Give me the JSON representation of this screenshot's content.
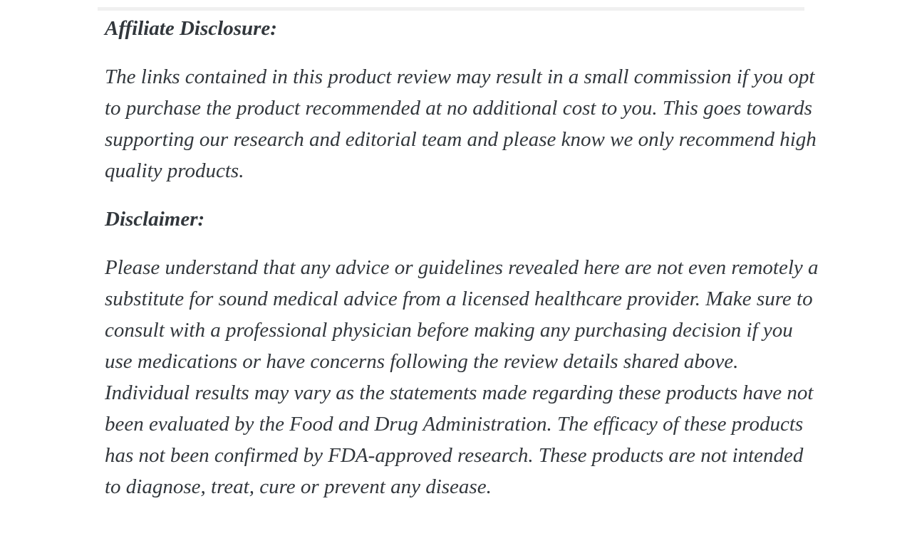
{
  "theme": {
    "background": "#ffffff",
    "text-color": "#32373c",
    "band-color": "#f0f0f0"
  },
  "article": {
    "sections": [
      {
        "heading": "Affiliate Disclosure:",
        "body": "The links contained in this product review may result in a small commission if you opt to purchase the product recommended at no additional cost to you. This goes towards supporting our research and editorial team and please know we only recommend high quality products."
      },
      {
        "heading": "Disclaimer:",
        "body": "Please understand that any advice or guidelines revealed here are not even remotely a substitute for sound medical advice from a licensed healthcare provider. Make sure to consult with a professional physician before making any purchasing decision if you use medications or have concerns following the review details shared above. Individual results may vary as the statements made regarding these products have not been evaluated by the Food and Drug Administration. The efficacy of these products has not been confirmed by FDA-approved research. These products are not intended to diagnose, treat, cure or prevent any disease."
      }
    ]
  }
}
